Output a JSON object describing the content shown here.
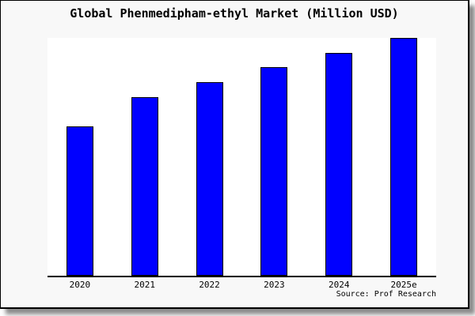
{
  "chart_data": {
    "type": "bar",
    "title": "Global Phenmedipham-ethyl Market (Million USD)",
    "categories": [
      "2020",
      "2021",
      "2022",
      "2023",
      "2024",
      "2025e"
    ],
    "values": [
      62.8,
      75.1,
      81.4,
      87.7,
      93.7,
      100
    ],
    "values_unit": "relative index (y-axis unlabeled; 2025e bar = 100)",
    "xlabel": "",
    "ylabel": "",
    "ylim": [
      0,
      100
    ],
    "grid": false,
    "y_axis_visible": false,
    "legend_position": "none",
    "bar_color": "#0000ff",
    "bar_border_color": "#000000",
    "plot_background": "#ffffff",
    "figure_background": "#f8f8f8",
    "source_label": "Source: Prof Research"
  }
}
